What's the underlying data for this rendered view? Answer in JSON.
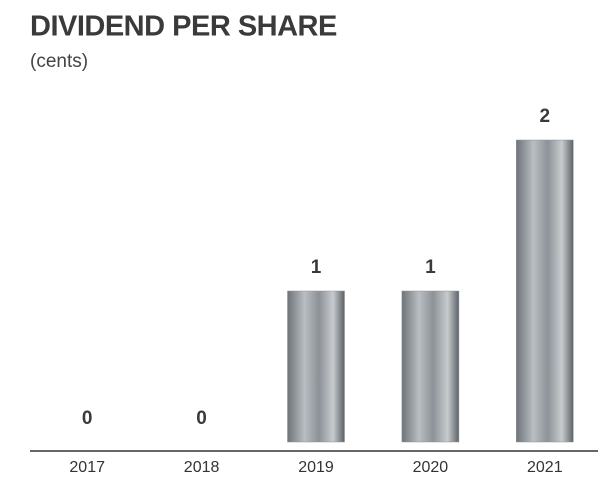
{
  "chart_data": {
    "type": "bar",
    "title": "DIVIDEND PER SHARE",
    "subtitle": "(cents)",
    "categories": [
      "2017",
      "2018",
      "2019",
      "2020",
      "2021"
    ],
    "values": [
      0,
      0,
      1,
      1,
      2
    ],
    "color": "#8c9298"
  }
}
